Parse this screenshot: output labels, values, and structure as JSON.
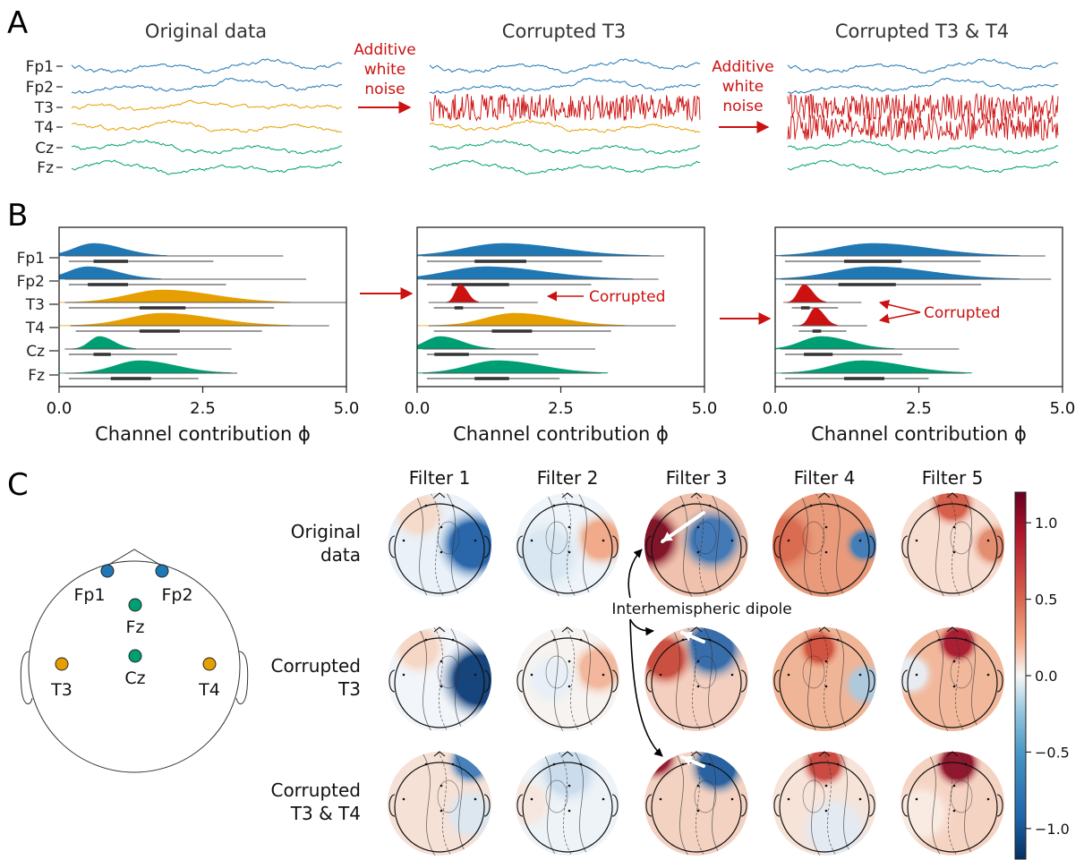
{
  "panel_a": {
    "letter": "A",
    "titles": [
      "Original data",
      "Corrupted T3",
      "Corrupted T3 & T4"
    ],
    "channels": [
      "Fp1",
      "Fp2",
      "T3",
      "T4",
      "Cz",
      "Fz"
    ],
    "arrow_label_lines": [
      "Additive",
      "white",
      "noise"
    ]
  },
  "panel_b": {
    "letter": "B",
    "channels": [
      "Fp1",
      "Fp2",
      "T3",
      "T4",
      "Cz",
      "Fz"
    ],
    "corrupted_label": "Corrupted"
  },
  "panel_c": {
    "letter": "C",
    "electrodes": [
      "Fp1",
      "Fp2",
      "Fz",
      "Cz",
      "T3",
      "T4"
    ],
    "filters": [
      "Filter 1",
      "Filter 2",
      "Filter 3",
      "Filter 4",
      "Filter 5"
    ],
    "row_labels": [
      [
        "Original",
        "data"
      ],
      [
        "Corrupted",
        "T3"
      ],
      [
        "Corrupted",
        "T3 & T4"
      ]
    ],
    "annotation": "Interhemispheric dipole",
    "colorbar_ticks": [
      "1.0",
      "0.5",
      "0.0",
      "−0.5",
      "−1.0"
    ]
  },
  "colors": {
    "frontal": "#1f77b4",
    "temporal": "#e69f00",
    "central": "#009e73",
    "corrupted": "#cc1111",
    "cmap_pos": "#67001f",
    "cmap_neg": "#053061"
  },
  "chart_data": [
    {
      "type": "line",
      "description_free": true,
      "series": [
        {
          "name": "Fp1",
          "condition": "original"
        },
        {
          "name": "Fp2",
          "condition": "original"
        },
        {
          "name": "T3",
          "condition": "original"
        },
        {
          "name": "T4",
          "condition": "original"
        },
        {
          "name": "Cz",
          "condition": "original"
        },
        {
          "name": "Fz",
          "condition": "original"
        }
      ],
      "panels": [
        "Original data",
        "Corrupted T3",
        "Corrupted T3 & T4"
      ]
    },
    {
      "type": "raincloud",
      "xlabel": "Channel contribution ϕ",
      "xlim": [
        0.0,
        5.0
      ],
      "xticks": [
        "0.0",
        "2.5",
        "5.0"
      ],
      "categories": [
        "Fp1",
        "Fp2",
        "T3",
        "T4",
        "Cz",
        "Fz"
      ],
      "panels": [
        {
          "name": "Original data",
          "series": [
            {
              "name": "Fp1",
              "mode": 0.6,
              "spread": 0.4,
              "q1": 0.6,
              "q3": 1.2,
              "min": 0.1,
              "max": 3.9
            },
            {
              "name": "Fp2",
              "mode": 0.5,
              "spread": 0.4,
              "q1": 0.5,
              "q3": 1.2,
              "min": 0.1,
              "max": 4.3
            },
            {
              "name": "T3",
              "mode": 1.8,
              "spread": 0.7,
              "q1": 1.4,
              "q3": 2.2,
              "min": 0.1,
              "max": 5.0
            },
            {
              "name": "T4",
              "mode": 1.8,
              "spread": 0.7,
              "q1": 1.4,
              "q3": 2.1,
              "min": 0.2,
              "max": 4.7
            },
            {
              "name": "Cz",
              "mode": 0.7,
              "spread": 0.2,
              "q1": 0.6,
              "q3": 0.9,
              "min": 0.1,
              "max": 3.0
            },
            {
              "name": "Fz",
              "mode": 1.4,
              "spread": 0.5,
              "q1": 0.9,
              "q3": 1.6,
              "min": 0.1,
              "max": 3.1
            }
          ]
        },
        {
          "name": "Corrupted T3",
          "series": [
            {
              "name": "Fp1",
              "mode": 1.5,
              "spread": 0.8,
              "q1": 1.0,
              "q3": 1.9,
              "min": 0.1,
              "max": 4.3
            },
            {
              "name": "Fp2",
              "mode": 1.2,
              "spread": 0.8,
              "q1": 0.6,
              "q3": 1.6,
              "min": 0.1,
              "max": 4.2
            },
            {
              "name": "T3",
              "mode": 0.75,
              "spread": 0.1,
              "q1": 0.65,
              "q3": 0.8,
              "min": 0.2,
              "max": 2.1
            },
            {
              "name": "T4",
              "mode": 1.7,
              "spread": 0.6,
              "q1": 1.3,
              "q3": 2.0,
              "min": 0.2,
              "max": 4.5
            },
            {
              "name": "Cz",
              "mode": 0.4,
              "spread": 0.3,
              "q1": 0.3,
              "q3": 0.9,
              "min": 0.1,
              "max": 3.1
            },
            {
              "name": "Fz",
              "mode": 1.4,
              "spread": 0.6,
              "q1": 1.0,
              "q3": 1.6,
              "min": 0.1,
              "max": 3.2
            }
          ]
        },
        {
          "name": "Corrupted T3 & T4",
          "series": [
            {
              "name": "Fp1",
              "mode": 1.7,
              "spread": 0.8,
              "q1": 1.2,
              "q3": 2.2,
              "min": 0.1,
              "max": 4.7
            },
            {
              "name": "Fp2",
              "mode": 1.7,
              "spread": 0.8,
              "q1": 1.1,
              "q3": 2.1,
              "min": 0.1,
              "max": 4.8
            },
            {
              "name": "T3",
              "mode": 0.5,
              "spread": 0.12,
              "q1": 0.45,
              "q3": 0.6,
              "min": 0.2,
              "max": 1.5
            },
            {
              "name": "T4",
              "mode": 0.7,
              "spread": 0.12,
              "q1": 0.65,
              "q3": 0.8,
              "min": 0.3,
              "max": 1.6
            },
            {
              "name": "Cz",
              "mode": 0.8,
              "spread": 0.4,
              "q1": 0.5,
              "q3": 1.0,
              "min": 0.1,
              "max": 3.2
            },
            {
              "name": "Fz",
              "mode": 1.5,
              "spread": 0.6,
              "q1": 1.2,
              "q3": 1.9,
              "min": 0.1,
              "max": 3.3
            }
          ]
        }
      ]
    },
    {
      "type": "heatmap",
      "description": "topographic maps",
      "colorbar": {
        "vmin": -1.2,
        "vmax": 1.2,
        "ticks": [
          1.0,
          0.5,
          0.0,
          -0.5,
          -1.0
        ]
      },
      "rows": [
        "Original data",
        "Corrupted T3",
        "Corrupted T3 & T4"
      ],
      "columns": [
        "Filter 1",
        "Filter 2",
        "Filter 3",
        "Filter 4",
        "Filter 5"
      ]
    }
  ]
}
